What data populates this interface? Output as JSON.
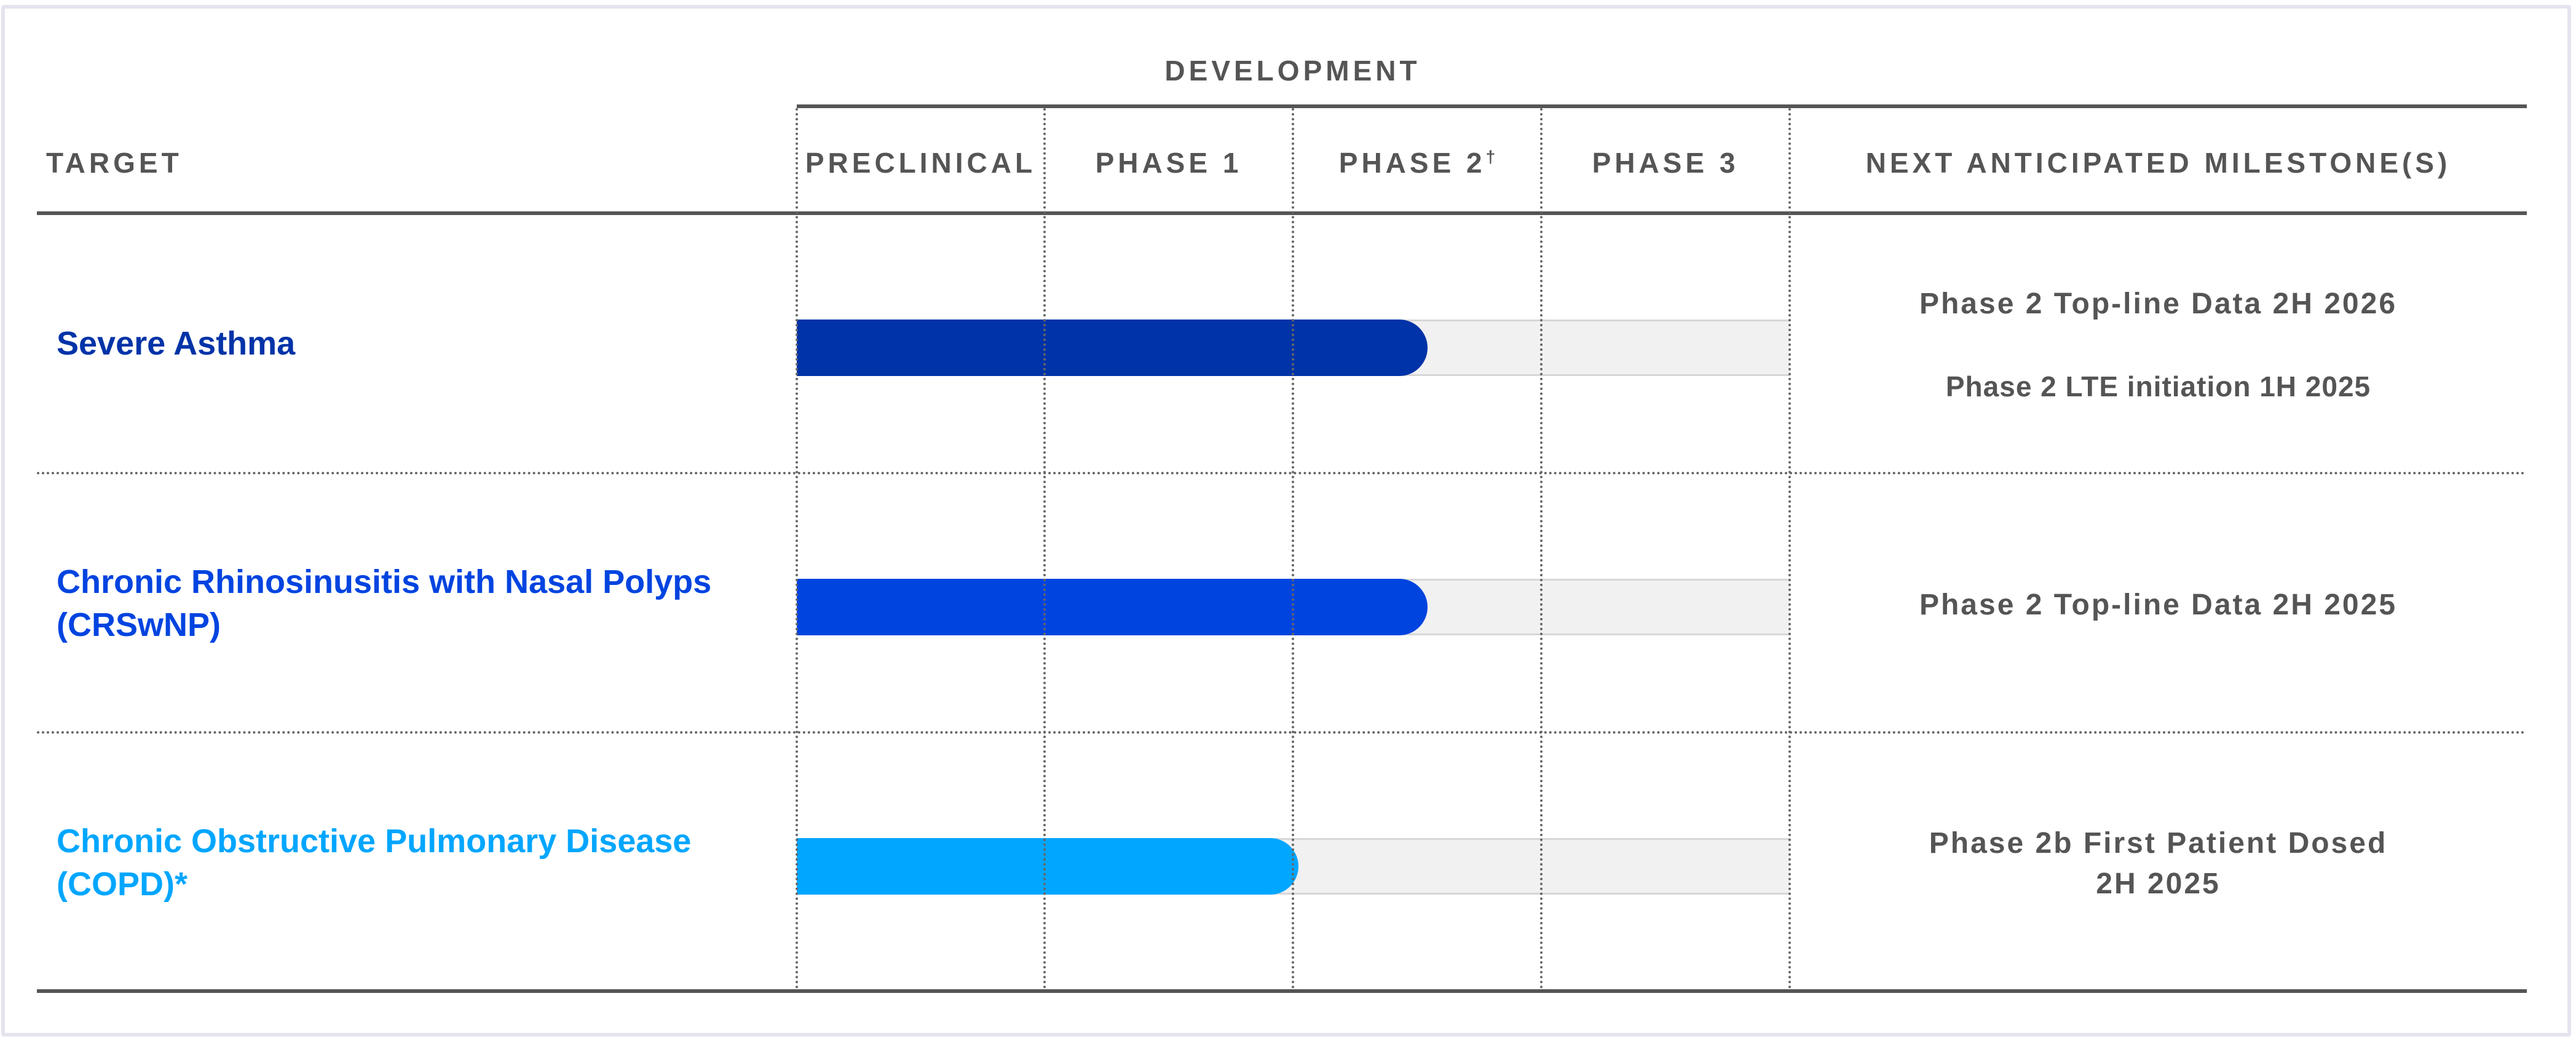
{
  "header": {
    "development": "DEVELOPMENT",
    "target": "TARGET",
    "phases": [
      {
        "label": "PRECLINICAL",
        "sup": ""
      },
      {
        "label": "PHASE 1",
        "sup": ""
      },
      {
        "label": "PHASE 2",
        "sup": "†"
      },
      {
        "label": "PHASE 3",
        "sup": ""
      }
    ],
    "milestones": "NEXT ANTICIPATED MILESTONE(S)"
  },
  "rows": [
    {
      "target": "Severe Asthma",
      "color": "#0033a8",
      "progress_phases": 2.54,
      "milestones": [
        "Phase 2 Top-line Data 2H 2026",
        "Phase 2 LTE initiation 1H 2025"
      ]
    },
    {
      "target": "Chronic Rhinosinusitis with Nasal Polyps (CRSwNP)",
      "color": "#0044e0",
      "progress_phases": 2.54,
      "milestones": [
        "Phase 2 Top-line Data 2H 2025"
      ]
    },
    {
      "target": "Chronic Obstructive Pulmonary Disease (COPD)*",
      "color": "#00a6ff",
      "progress_phases": 2.02,
      "milestones": [
        "Phase 2b First Patient Dosed",
        "2H 2025"
      ]
    }
  ]
}
